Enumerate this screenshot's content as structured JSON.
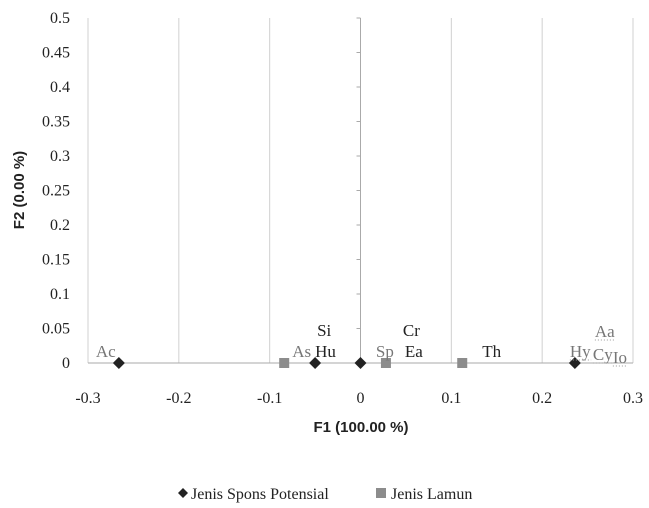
{
  "chart_data": {
    "type": "scatter",
    "xlabel": "F1 (100.00 %)",
    "ylabel": "F2 (0.00 %)",
    "xlim": [
      -0.3,
      0.3
    ],
    "ylim": [
      0,
      0.5
    ],
    "x_ticks": [
      "-0.3",
      "-0.2",
      "-0.1",
      "0",
      "0.1",
      "0.2",
      "0.3"
    ],
    "y_ticks": [
      "0",
      "0.05",
      "0.1",
      "0.15",
      "0.2",
      "0.25",
      "0.3",
      "0.35",
      "0.4",
      "0.45",
      "0.5"
    ],
    "grid": true,
    "legend_position": "bottom",
    "series": [
      {
        "name": "Jenis Spons Potensial",
        "marker": "diamond",
        "color": "#222222",
        "points": [
          {
            "x": -0.266,
            "y": 0
          },
          {
            "x": -0.05,
            "y": 0
          },
          {
            "x": 0.0,
            "y": 0
          },
          {
            "x": 0.236,
            "y": 0
          }
        ]
      },
      {
        "name": "Jenis Lamun",
        "marker": "square",
        "color": "#8c8c8c",
        "points": [
          {
            "x": -0.084,
            "y": 0
          },
          {
            "x": 0.028,
            "y": 0
          },
          {
            "x": 0.112,
            "y": 0
          }
        ]
      }
    ],
    "annotations": [
      {
        "text": "Ac",
        "x": -0.266,
        "y": 0,
        "color": "#777777"
      },
      {
        "text": "As",
        "x": -0.084,
        "y": 0,
        "color": "#777777"
      },
      {
        "text": "Hu",
        "x": -0.05,
        "y": 0,
        "color": "#222222"
      },
      {
        "text": "Si",
        "x": -0.05,
        "y": 0,
        "color": "#222222"
      },
      {
        "text": "Sp",
        "x": 0.028,
        "y": 0,
        "color": "#777777"
      },
      {
        "text": "Ea",
        "x": 0.028,
        "y": 0,
        "color": "#222222"
      },
      {
        "text": "Cr",
        "x": 0.028,
        "y": 0,
        "color": "#222222"
      },
      {
        "text": "Th",
        "x": 0.112,
        "y": 0,
        "color": "#222222"
      },
      {
        "text": "Hy",
        "x": 0.236,
        "y": 0,
        "color": "#777777"
      },
      {
        "text": "Cy",
        "x": 0.236,
        "y": 0,
        "color": "#777777"
      },
      {
        "text": "Io",
        "x": 0.236,
        "y": 0,
        "color": "#777777"
      },
      {
        "text": "Aa",
        "x": 0.236,
        "y": 0,
        "color": "#777777"
      }
    ],
    "colors": {
      "axis": "#aaaaaa",
      "grid": "#d0d0d0",
      "text": "#222222"
    }
  }
}
